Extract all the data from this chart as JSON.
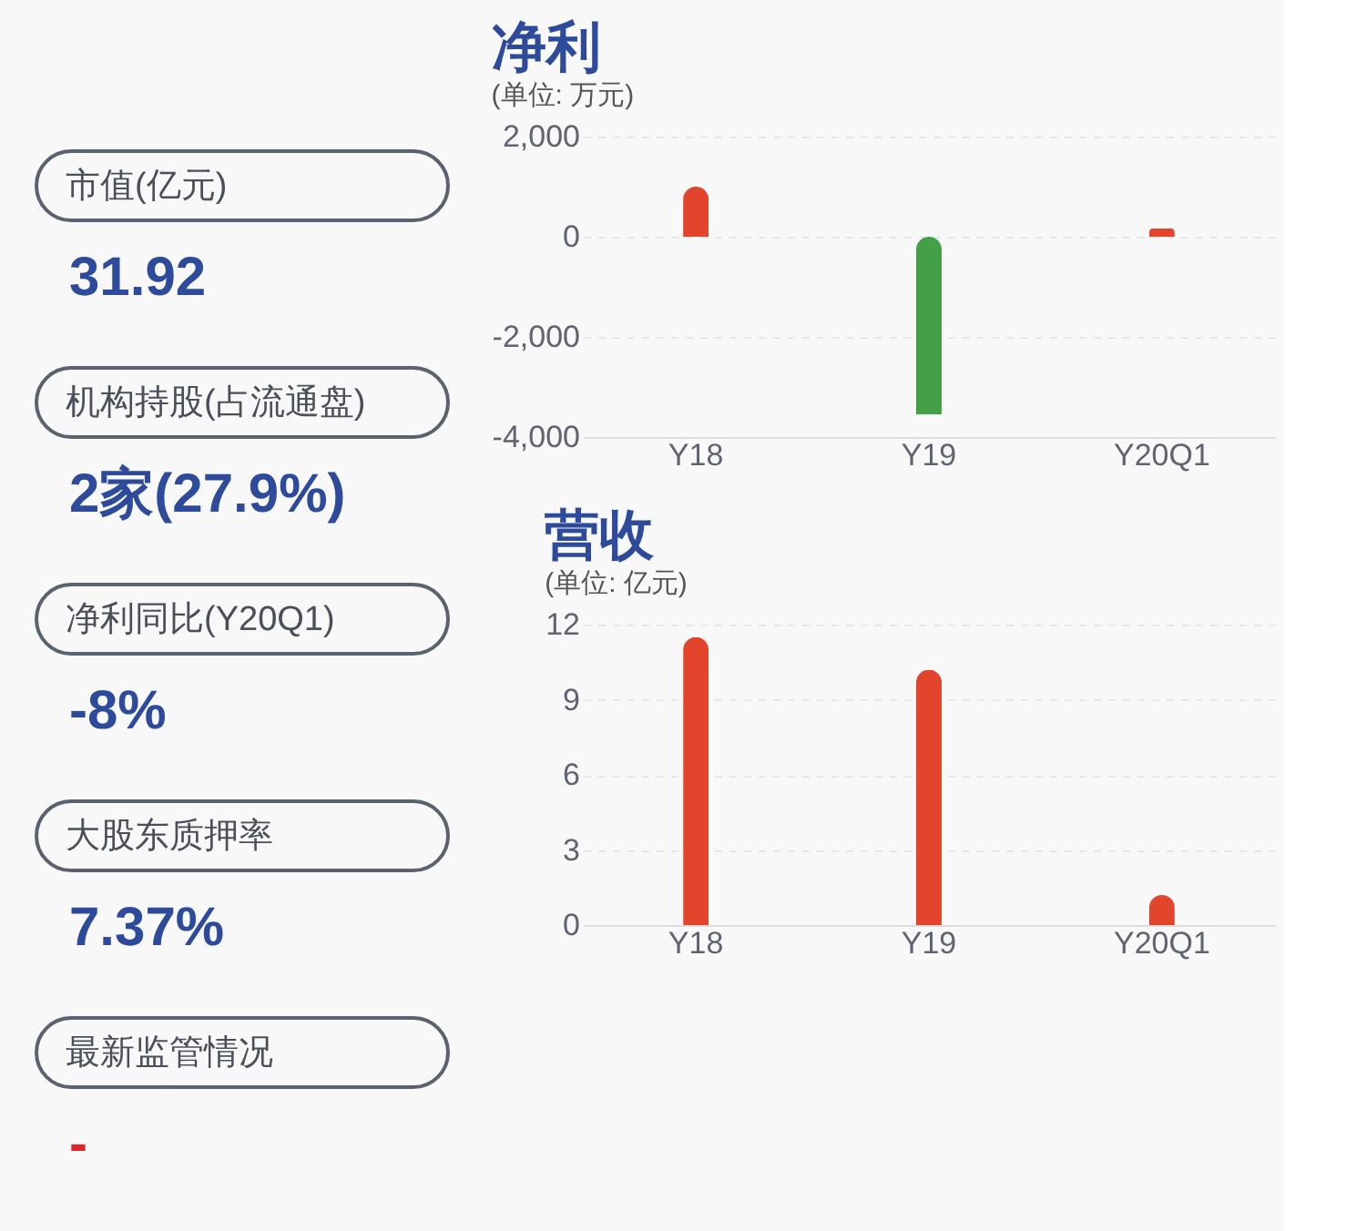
{
  "chart_data": [
    {
      "type": "other",
      "annotations": [
        "市值(亿元)",
        "31.92",
        "机构持股(占流通盘)",
        "2家(27.9%)",
        "净利同比(Y20Q1)",
        "-8%",
        "大股东质押率",
        "7.37%",
        "最新监管情况",
        "-"
      ],
      "colors": [
        "#2e4a9b",
        "#2e4a9b",
        "#2e4a9b",
        "#2e4a9b",
        "#e0262b"
      ]
    },
    {
      "type": "bar",
      "title": "净利",
      "subtitle": "(单位: 万元)",
      "categories": [
        "Y18",
        "Y19",
        "Y20Q1"
      ],
      "values": [
        1000,
        -3550,
        170
      ],
      "colors": [
        "#e2452c",
        "#43a047",
        "#e2452c"
      ],
      "ylim": [
        -4000,
        2000
      ],
      "yticks": [
        {
          "value": -4000,
          "label": "-4,000"
        },
        {
          "value": -2000,
          "label": "-2,000"
        },
        0,
        {
          "value": 2000,
          "label": "2,000"
        }
      ],
      "grid": "y"
    },
    {
      "type": "bar",
      "title": "营收",
      "subtitle": "(单位: 亿元)",
      "categories": [
        "Y18",
        "Y19",
        "Y20Q1"
      ],
      "values": [
        11.5,
        10.2,
        1.2
      ],
      "colors": [
        "#e2452c",
        "#e2452c",
        "#e2452c"
      ],
      "ylim": [
        0,
        12
      ],
      "yticks": [
        0,
        3,
        6,
        9,
        12
      ],
      "grid": "y"
    }
  ]
}
